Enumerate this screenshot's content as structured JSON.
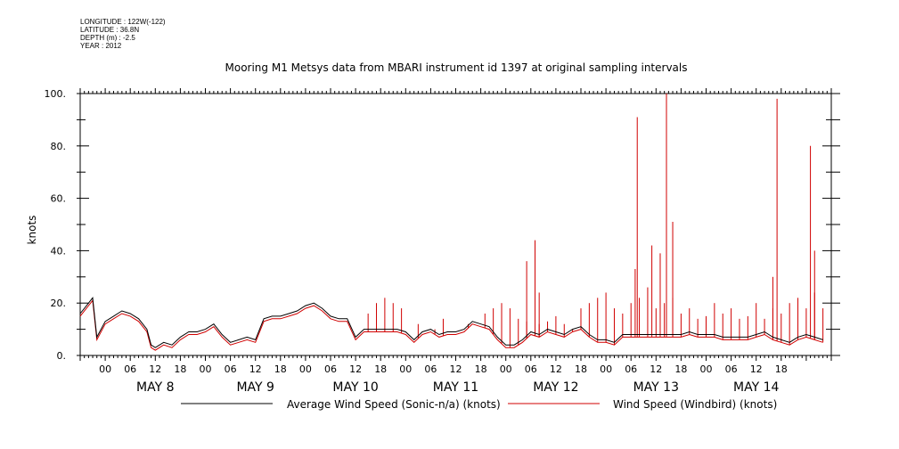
{
  "metadata": {
    "longitude": "LONGITUDE : 122W(-122)",
    "latitude": "LATITUDE : 36.8N",
    "depth": "DEPTH (m) : -2.5",
    "year": "YEAR : 2012"
  },
  "chart_data": {
    "type": "line",
    "title": "Mooring M1 Metsys data from MBARI instrument id 1397 at original sampling intervals",
    "ylabel": "knots",
    "xlabel": "",
    "ylim": [
      0,
      100
    ],
    "xlim_hours": [
      -6,
      174
    ],
    "yticks": [
      "0.",
      "20.",
      "40.",
      "60.",
      "80.",
      "100."
    ],
    "xticks_hour": [
      "00",
      "06",
      "12",
      "18",
      "00",
      "06",
      "12",
      "18",
      "00",
      "06",
      "12",
      "18",
      "00",
      "06",
      "12",
      "18",
      "00",
      "06",
      "12",
      "18",
      "00",
      "06",
      "12",
      "18",
      "00",
      "06",
      "12",
      "18"
    ],
    "day_labels": [
      "MAY  8",
      "MAY  9",
      "MAY 10",
      "MAY 11",
      "MAY 12",
      "MAY 13",
      "MAY 14"
    ],
    "grid": false,
    "legend_position": "bottom",
    "series": [
      {
        "name": "Average Wind Speed (Sonic-n/a) (knots)",
        "color": "#000000",
        "x_hours": [
          -6,
          -4,
          -3,
          -2,
          0,
          2,
          4,
          6,
          8,
          10,
          11,
          12,
          14,
          16,
          18,
          20,
          22,
          24,
          26,
          28,
          30,
          32,
          34,
          36,
          38,
          40,
          42,
          44,
          46,
          48,
          50,
          52,
          54,
          56,
          58,
          60,
          62,
          64,
          66,
          68,
          70,
          72,
          74,
          76,
          78,
          80,
          82,
          84,
          86,
          88,
          90,
          92,
          94,
          96,
          98,
          100,
          102,
          104,
          106,
          108,
          110,
          112,
          114,
          116,
          118,
          120,
          122,
          124,
          126,
          128,
          130,
          132,
          134,
          136,
          138,
          140,
          142,
          144,
          146,
          148,
          150,
          152,
          154,
          156,
          158,
          160,
          162,
          164,
          166,
          168,
          170,
          172
        ],
        "values": [
          16,
          20,
          22,
          7,
          13,
          15,
          17,
          16,
          14,
          10,
          4,
          3,
          5,
          4,
          7,
          9,
          9,
          10,
          12,
          8,
          5,
          6,
          7,
          6,
          14,
          15,
          15,
          16,
          17,
          19,
          20,
          18,
          15,
          14,
          14,
          7,
          10,
          10,
          10,
          10,
          10,
          9,
          6,
          9,
          10,
          8,
          9,
          9,
          10,
          13,
          12,
          11,
          7,
          4,
          4,
          6,
          9,
          8,
          10,
          9,
          8,
          10,
          11,
          8,
          6,
          6,
          5,
          8,
          8,
          8,
          8,
          8,
          8,
          8,
          8,
          9,
          8,
          8,
          8,
          7,
          7,
          7,
          7,
          8,
          9,
          7,
          6,
          5,
          7,
          8,
          7,
          6
        ]
      },
      {
        "name": "Wind Speed (Windbird) (knots)",
        "color": "#d00000",
        "x_hours": [
          -6,
          -4,
          -3,
          -2,
          0,
          2,
          4,
          6,
          8,
          10,
          11,
          12,
          14,
          16,
          18,
          20,
          22,
          24,
          26,
          28,
          30,
          32,
          34,
          36,
          38,
          40,
          42,
          44,
          46,
          48,
          50,
          52,
          54,
          56,
          58,
          60,
          62,
          64,
          66,
          68,
          70,
          72,
          74,
          76,
          78,
          80,
          82,
          84,
          86,
          88,
          90,
          92,
          94,
          96,
          98,
          100,
          102,
          104,
          106,
          108,
          110,
          112,
          114,
          116,
          118,
          120,
          122,
          124,
          126,
          128,
          130,
          132,
          134,
          136,
          138,
          140,
          142,
          144,
          146,
          148,
          150,
          152,
          154,
          156,
          158,
          160,
          162,
          164,
          166,
          168,
          170,
          172
        ],
        "values": [
          15,
          19,
          21,
          6,
          12,
          14,
          16,
          15,
          13,
          9,
          3,
          2,
          4,
          3,
          6,
          8,
          8,
          9,
          11,
          7,
          4,
          5,
          6,
          5,
          13,
          14,
          14,
          15,
          16,
          18,
          19,
          17,
          14,
          13,
          13,
          6,
          9,
          9,
          9,
          9,
          9,
          8,
          5,
          8,
          9,
          7,
          8,
          8,
          9,
          12,
          11,
          10,
          6,
          3,
          3,
          5,
          8,
          7,
          9,
          8,
          7,
          9,
          10,
          7,
          5,
          5,
          4,
          7,
          7,
          7,
          7,
          7,
          7,
          7,
          7,
          8,
          7,
          7,
          7,
          6,
          6,
          6,
          6,
          7,
          8,
          6,
          5,
          4,
          6,
          7,
          6,
          5
        ],
        "spikes_hours": [
          63,
          65,
          67,
          69,
          71,
          75,
          79,
          81,
          87,
          91,
          93,
          95,
          97,
          99,
          101,
          104,
          106,
          108,
          110,
          112,
          114,
          116,
          118,
          120,
          122,
          124,
          126,
          128,
          130,
          132,
          134,
          136,
          138,
          140,
          142,
          144,
          146,
          148,
          150,
          152,
          154,
          156,
          158,
          160,
          162,
          164,
          166,
          168,
          170,
          172
        ],
        "spikes_values": [
          16,
          20,
          22,
          20,
          18,
          12,
          10,
          14,
          12,
          16,
          18,
          20,
          18,
          14,
          13,
          12,
          13,
          15,
          12,
          10,
          18,
          20,
          22,
          24,
          18,
          16,
          20,
          22,
          26,
          18,
          20,
          22,
          16,
          18,
          14,
          15,
          20,
          16,
          18,
          14,
          15,
          20,
          14,
          18,
          16,
          20,
          22,
          18,
          24,
          18
        ],
        "peaks_hours": [
          101,
          103,
          104,
          127,
          127.5,
          131,
          133,
          134.5,
          136,
          160,
          161,
          169,
          170
        ],
        "peaks_values": [
          36,
          44,
          24,
          33,
          91,
          42,
          39,
          100,
          51,
          30,
          98,
          80,
          40
        ]
      }
    ]
  }
}
